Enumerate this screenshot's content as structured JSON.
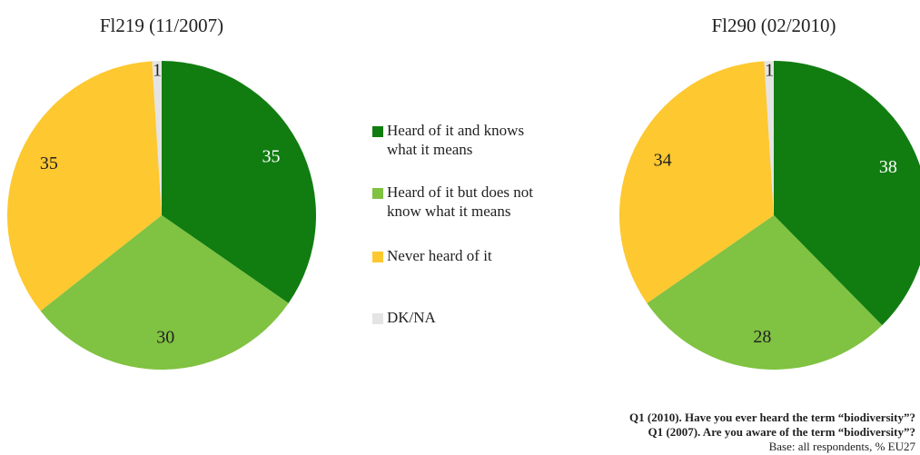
{
  "chart_data": [
    {
      "type": "pie",
      "title": "Fl219 (11/2007)",
      "categories": [
        "Heard of it and knows what it means",
        "Heard of it but does not know what it means",
        "Never heard of it",
        "DK/NA"
      ],
      "values": [
        35,
        30,
        35,
        1
      ],
      "colors": [
        "#117d11",
        "#80c241",
        "#fdc830",
        "#e4e4e4"
      ]
    },
    {
      "type": "pie",
      "title": "Fl290 (02/2010)",
      "categories": [
        "Heard of it and knows what it means",
        "Heard of it but does not know what it means",
        "Never heard of it",
        "DK/NA"
      ],
      "values": [
        38,
        28,
        34,
        1
      ],
      "colors": [
        "#117d11",
        "#80c241",
        "#fdc830",
        "#e4e4e4"
      ]
    }
  ],
  "notes": [
    "Q1 (2010). Have you ever heard the term “biodiversity”?",
    "Q1 (2007). Are you aware of the term “biodiversity”?",
    "Base: all respondents, % EU27"
  ]
}
